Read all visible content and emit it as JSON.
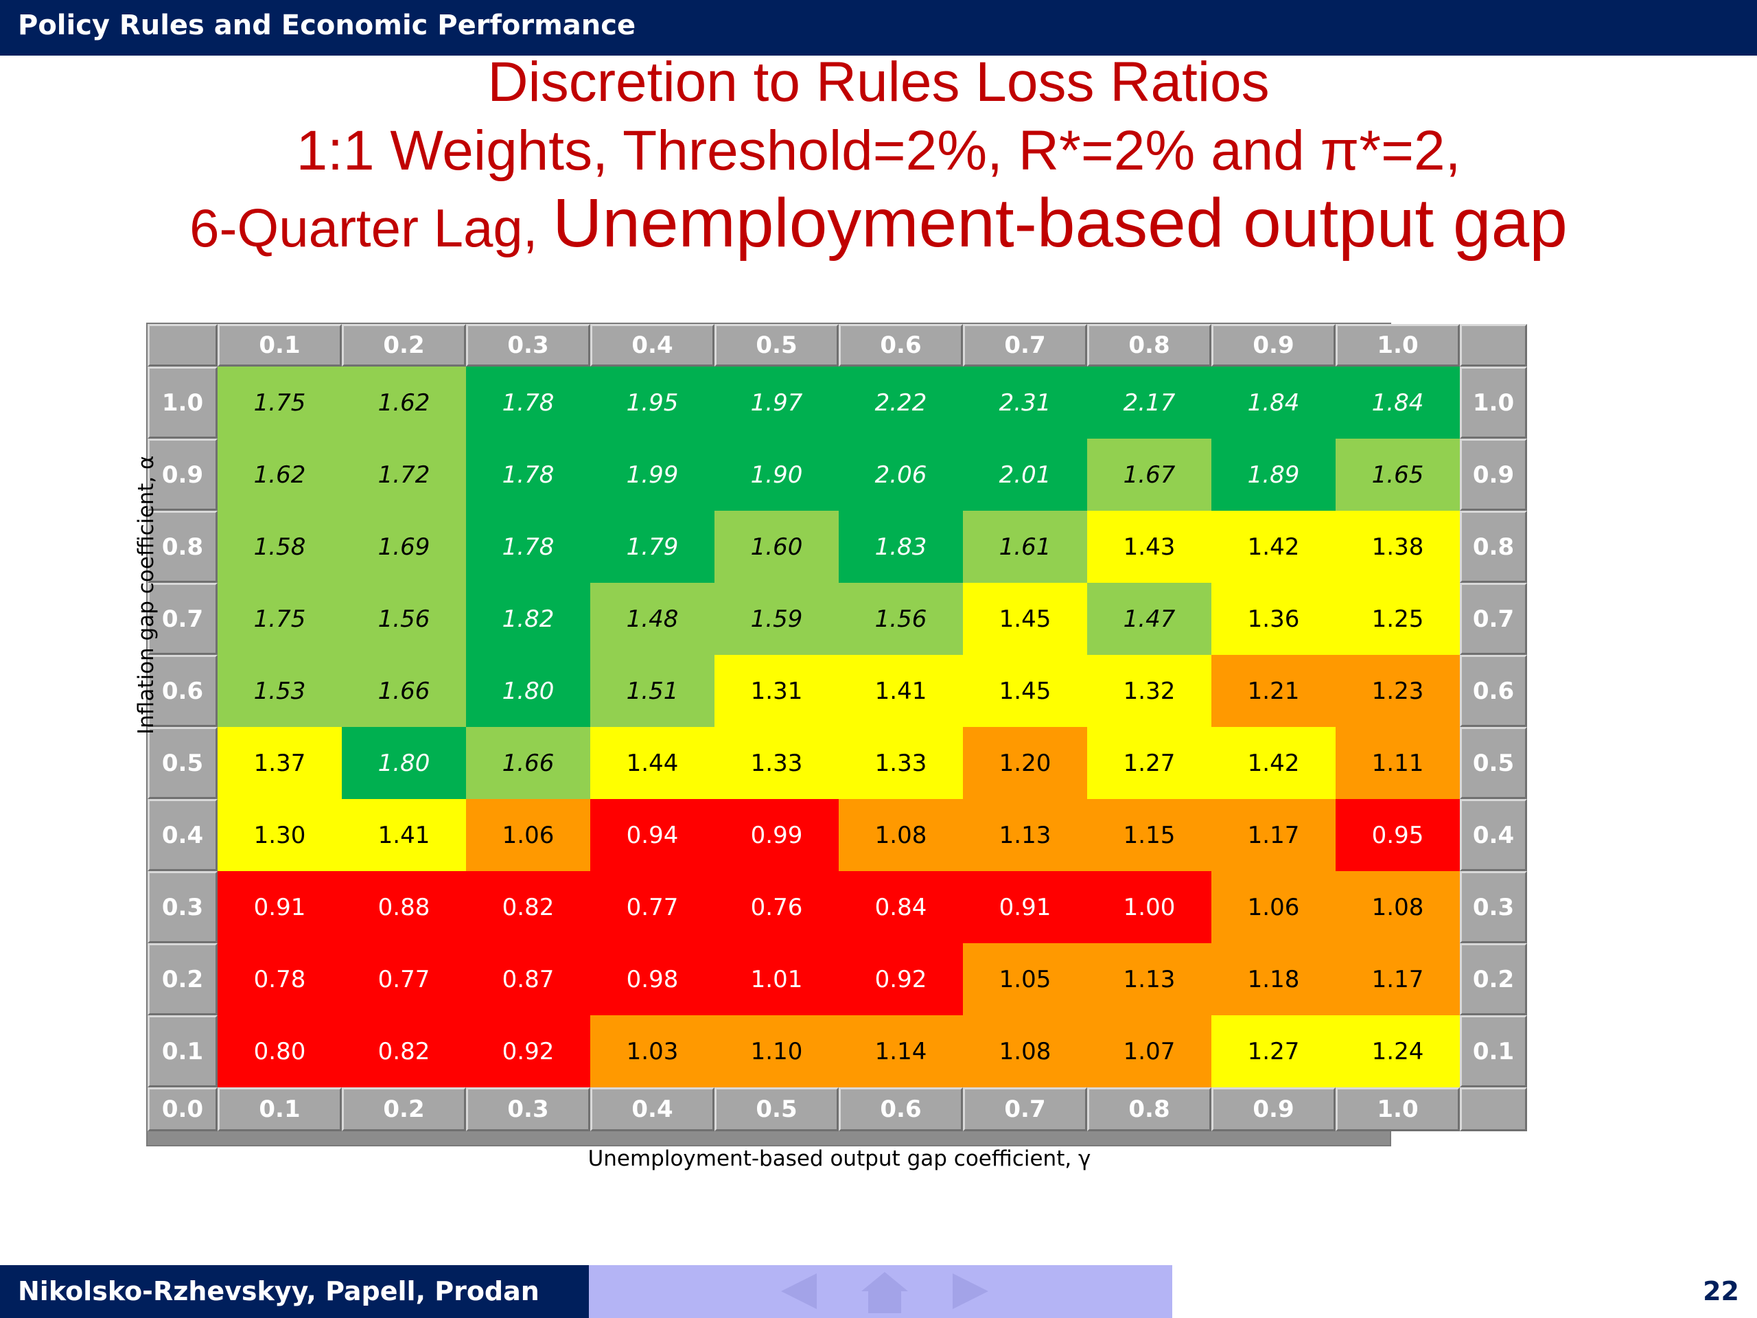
{
  "header": {
    "title": "Policy Rules and Economic Performance"
  },
  "slide_title": {
    "line1": "Discretion to Rules Loss Ratios",
    "line2": "1:1 Weights, Threshold=2%, R*=2% and π*=2,",
    "line3_prefix": "6-Quarter Lag, ",
    "line3_big": "Unemployment-based output gap"
  },
  "footer": {
    "authors": "Nikolsko-Rzhevskyy, Papell, Prodan",
    "page_number": "22"
  },
  "nav_icons": [
    "prev-arrow-icon",
    "home-icon",
    "next-arrow-icon"
  ],
  "colors": {
    "dark_green": "#00b050",
    "light_green": "#92d050",
    "yellow": "#ffff00",
    "orange": "#ff9900",
    "red": "#ff0000",
    "header_gray": "#a6a6a6"
  },
  "chart_data": {
    "type": "heatmap",
    "xlabel": "Unemployment-based output gap coefficient, γ",
    "ylabel": "Inflation gap coefficient, α",
    "columns": [
      "0.1",
      "0.2",
      "0.3",
      "0.4",
      "0.5",
      "0.6",
      "0.7",
      "0.8",
      "0.9",
      "1.0"
    ],
    "rows": [
      "1.0",
      "0.9",
      "0.8",
      "0.7",
      "0.6",
      "0.5",
      "0.4",
      "0.3",
      "0.2",
      "0.1"
    ],
    "corner_bottom_left": "0.0",
    "values": [
      [
        "1.75",
        "1.62",
        "1.78",
        "1.95",
        "1.97",
        "2.22",
        "2.31",
        "2.17",
        "1.84",
        "1.84"
      ],
      [
        "1.62",
        "1.72",
        "1.78",
        "1.99",
        "1.90",
        "2.06",
        "2.01",
        "1.67",
        "1.89",
        "1.65"
      ],
      [
        "1.58",
        "1.69",
        "1.78",
        "1.79",
        "1.60",
        "1.83",
        "1.61",
        "1.43",
        "1.42",
        "1.38"
      ],
      [
        "1.75",
        "1.56",
        "1.82",
        "1.48",
        "1.59",
        "1.56",
        "1.45",
        "1.47",
        "1.36",
        "1.25"
      ],
      [
        "1.53",
        "1.66",
        "1.80",
        "1.51",
        "1.31",
        "1.41",
        "1.45",
        "1.32",
        "1.21",
        "1.23"
      ],
      [
        "1.37",
        "1.80",
        "1.66",
        "1.44",
        "1.33",
        "1.33",
        "1.20",
        "1.27",
        "1.42",
        "1.11"
      ],
      [
        "1.30",
        "1.41",
        "1.06",
        "0.94",
        "0.99",
        "1.08",
        "1.13",
        "1.15",
        "1.17",
        "0.95"
      ],
      [
        "0.91",
        "0.88",
        "0.82",
        "0.77",
        "0.76",
        "0.84",
        "0.91",
        "1.00",
        "1.06",
        "1.08"
      ],
      [
        "0.78",
        "0.77",
        "0.87",
        "0.98",
        "1.01",
        "0.92",
        "1.05",
        "1.13",
        "1.18",
        "1.17"
      ],
      [
        "0.80",
        "0.82",
        "0.92",
        "1.03",
        "1.10",
        "1.14",
        "1.08",
        "1.07",
        "1.27",
        "1.24"
      ]
    ],
    "cell_colors": [
      [
        "LG",
        "LG",
        "DG",
        "DG",
        "DG",
        "DG",
        "DG",
        "DG",
        "DG",
        "DG"
      ],
      [
        "LG",
        "LG",
        "DG",
        "DG",
        "DG",
        "DG",
        "DG",
        "LG",
        "DG",
        "LG"
      ],
      [
        "LG",
        "LG",
        "DG",
        "DG",
        "LG",
        "DG",
        "LG",
        "Y",
        "Y",
        "Y"
      ],
      [
        "LG",
        "LG",
        "DG",
        "LG",
        "LG",
        "LG",
        "Y",
        "LG",
        "Y",
        "Y"
      ],
      [
        "LG",
        "LG",
        "DG",
        "LG",
        "Y",
        "Y",
        "Y",
        "Y",
        "O",
        "O"
      ],
      [
        "Y",
        "DG",
        "LG",
        "Y",
        "Y",
        "Y",
        "O",
        "Y",
        "Y",
        "O"
      ],
      [
        "Y",
        "Y",
        "O",
        "R",
        "R",
        "O",
        "O",
        "O",
        "O",
        "R"
      ],
      [
        "R",
        "R",
        "R",
        "R",
        "R",
        "R",
        "R",
        "R",
        "O",
        "O"
      ],
      [
        "R",
        "R",
        "R",
        "R",
        "R",
        "R",
        "O",
        "O",
        "O",
        "O"
      ],
      [
        "R",
        "R",
        "R",
        "O",
        "O",
        "O",
        "O",
        "O",
        "Y",
        "Y"
      ]
    ]
  }
}
